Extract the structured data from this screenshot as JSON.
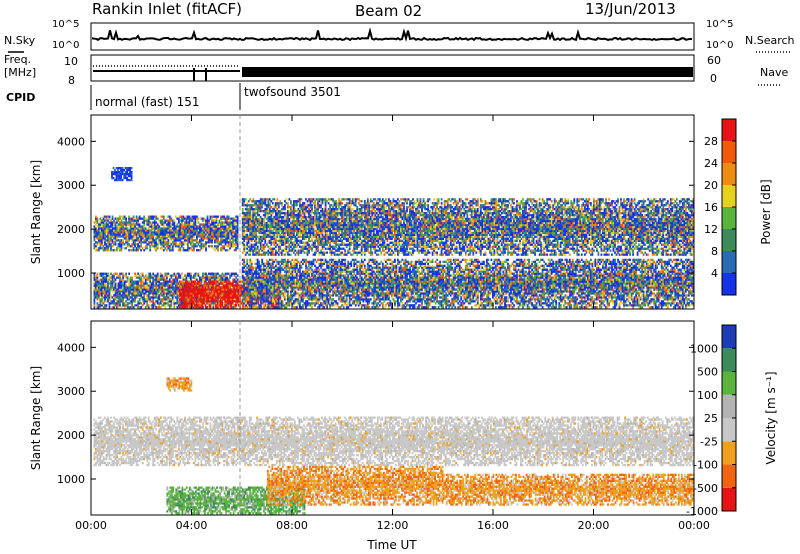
{
  "header": {
    "site": "Rankin Inlet (fitACF)",
    "beam": "Beam 02",
    "date": "13/Jun/2013"
  },
  "status_panels": {
    "nsky_label": "N.Sky",
    "nsearch_label": "N.Search",
    "nsky_ticks": [
      "10^5",
      "10^0"
    ],
    "nsearch_ticks": [
      "10^5",
      "10^0"
    ],
    "freq_label": "Freq.",
    "freq_unit": "[MHz]",
    "freq_ticks": [
      "10",
      "8"
    ],
    "nave_label": "Nave",
    "nave_ticks": [
      "60",
      "0"
    ],
    "cpid_label": "CPID",
    "cpid_modes": [
      {
        "name": "normal (fast) 151",
        "start": 0,
        "end": 6
      },
      {
        "name": "twofsound 3501",
        "start": 6,
        "end": 24
      }
    ]
  },
  "chart_data": [
    {
      "type": "heatmap",
      "title": "",
      "xlabel": "Time UT",
      "ylabel": "Slant Range [km]",
      "x_range": [
        0,
        24
      ],
      "y_range": [
        180,
        4600
      ],
      "x_ticks": [
        "00:00",
        "04:00",
        "08:00",
        "12:00",
        "16:00",
        "20:00",
        "00:00"
      ],
      "y_ticks": [
        1000,
        2000,
        3000,
        4000
      ],
      "colorbar": {
        "label": "Power [dB]",
        "ticks": [
          4,
          8,
          12,
          16,
          20,
          24,
          28
        ],
        "colors": [
          "#1432e6",
          "#2a6ab4",
          "#3c8c5a",
          "#5ab43c",
          "#e6d21e",
          "#f08c14",
          "#f05a0a",
          "#e61414"
        ]
      },
      "regions": [
        {
          "t0": 0.1,
          "t1": 5.8,
          "r0": 1500,
          "r1": 2300,
          "level": "mixed"
        },
        {
          "t0": 0.1,
          "t1": 5.8,
          "r0": 200,
          "r1": 1000,
          "level": "mixed"
        },
        {
          "t0": 0.8,
          "t1": 1.6,
          "r0": 3100,
          "r1": 3400,
          "level": "low"
        },
        {
          "t0": 3.5,
          "t1": 7.5,
          "r0": 200,
          "r1": 800,
          "level": "high"
        },
        {
          "t0": 6.0,
          "t1": 24.0,
          "r0": 1400,
          "r1": 2700,
          "level": "mixed"
        },
        {
          "t0": 6.0,
          "t1": 24.0,
          "r0": 200,
          "r1": 1300,
          "level": "mixed"
        }
      ]
    },
    {
      "type": "heatmap",
      "title": "",
      "xlabel": "Time UT",
      "ylabel": "Slant Range [km]",
      "x_range": [
        0,
        24
      ],
      "y_range": [
        180,
        4600
      ],
      "x_ticks": [
        "00:00",
        "04:00",
        "08:00",
        "12:00",
        "16:00",
        "20:00",
        "00:00"
      ],
      "y_ticks": [
        1000,
        2000,
        3000,
        4000
      ],
      "colorbar": {
        "label": "Velocity [m s⁻¹]",
        "ticks": [
          1000,
          500,
          100,
          25,
          -25,
          -100,
          -500,
          -1000
        ],
        "colors": [
          "#1e3cb4",
          "#3c8c5a",
          "#5ab43c",
          "#b4b4b4",
          "#c8c8c8",
          "#f0a01e",
          "#f06414",
          "#e61414"
        ]
      },
      "regions": [
        {
          "t0": 0.1,
          "t1": 24.0,
          "r0": 1300,
          "r1": 2400,
          "level": "near-zero"
        },
        {
          "t0": 3.0,
          "t1": 8.5,
          "r0": 200,
          "r1": 800,
          "level": "positive"
        },
        {
          "t0": 7.0,
          "t1": 14.0,
          "r0": 400,
          "r1": 1300,
          "level": "negative"
        },
        {
          "t0": 14.0,
          "t1": 24.0,
          "r0": 400,
          "r1": 1100,
          "level": "negative"
        },
        {
          "t0": 3.0,
          "t1": 4.0,
          "r0": 3000,
          "r1": 3300,
          "level": "negative"
        }
      ]
    }
  ]
}
